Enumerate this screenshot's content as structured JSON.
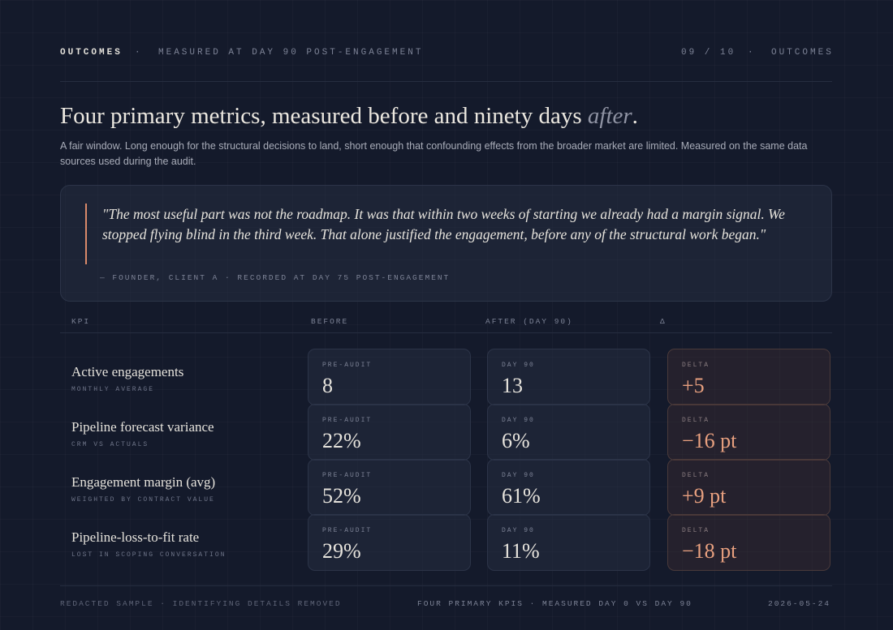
{
  "header": {
    "section": "OUTCOMES",
    "separator": "·",
    "subtitle": "MEASURED AT DAY 90 POST-ENGAGEMENT",
    "page": "09 / 10",
    "page_separator": "·",
    "page_section": "OUTCOMES"
  },
  "title": {
    "main": "Four primary metrics, measured before and ninety days ",
    "emphasis": "after",
    "end": "."
  },
  "intro": "A fair window. Long enough for the structural decisions to land, short enough that confounding effects from the broader market are limited. Measured on the same data sources used during the audit.",
  "quote": {
    "text": "\"The most useful part was not the roadmap. It was that within two weeks of starting we already had a margin signal. We stopped flying blind in the third week. That alone justified the engagement, before any of the structural work began.\"",
    "attribution": "— FOUNDER, CLIENT A · RECORDED AT DAY 75 POST-ENGAGEMENT"
  },
  "table": {
    "columns": [
      "KPI",
      "BEFORE",
      "AFTER (DAY 90)",
      "Δ"
    ],
    "rows": [
      {
        "label": "Active engagements",
        "sublabel": "MONTHLY AVERAGE",
        "before_label": "PRE-AUDIT",
        "before": "8",
        "after_label": "DAY 90",
        "after": "13",
        "delta_label": "DELTA",
        "delta": "+5"
      },
      {
        "label": "Pipeline forecast variance",
        "sublabel": "CRM VS ACTUALS",
        "before_label": "PRE-AUDIT",
        "before": "22%",
        "after_label": "DAY 90",
        "after": "6%",
        "delta_label": "DELTA",
        "delta": "−16 pt"
      },
      {
        "label": "Engagement margin (avg)",
        "sublabel": "WEIGHTED BY CONTRACT VALUE",
        "before_label": "PRE-AUDIT",
        "before": "52%",
        "after_label": "DAY 90",
        "after": "61%",
        "delta_label": "DELTA",
        "delta": "+9 pt"
      },
      {
        "label": "Pipeline-loss-to-fit rate",
        "sublabel": "LOST IN SCOPING CONVERSATION",
        "before_label": "PRE-AUDIT",
        "before": "29%",
        "after_label": "DAY 90",
        "after": "11%",
        "delta_label": "DELTA",
        "delta": "−18 pt"
      }
    ]
  },
  "footer": {
    "left": "REDACTED SAMPLE · IDENTIFYING DETAILS REMOVED",
    "center": "FOUR PRIMARY KPIS · MEASURED DAY 0 VS DAY 90",
    "right": "2026-05-24"
  }
}
